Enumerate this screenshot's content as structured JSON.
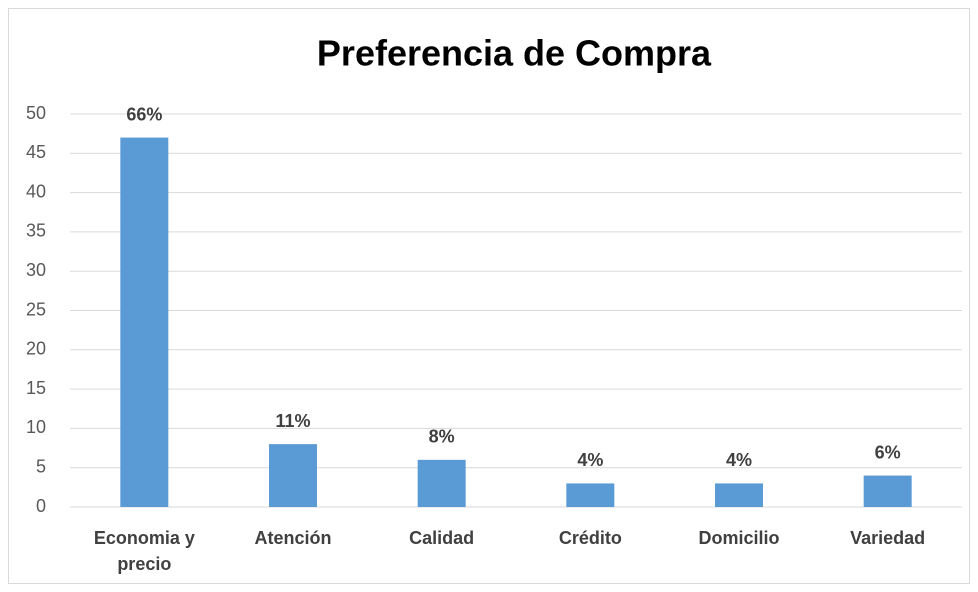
{
  "chart_data": {
    "type": "bar",
    "title": "Preferencia de Compra",
    "categories": [
      "Economia y precio",
      "Atención",
      "Calidad",
      "Crédito",
      "Domicilio",
      "Variedad"
    ],
    "values": [
      47,
      8,
      6,
      3,
      3,
      4
    ],
    "percent_labels": [
      "66%",
      "11%",
      "8%",
      "4%",
      "4%",
      "6%"
    ],
    "color": "#5b9bd5",
    "ylim": [
      0,
      50
    ],
    "yticks": [
      0,
      5,
      10,
      15,
      20,
      25,
      30,
      35,
      40,
      45,
      50
    ],
    "grid": true
  }
}
